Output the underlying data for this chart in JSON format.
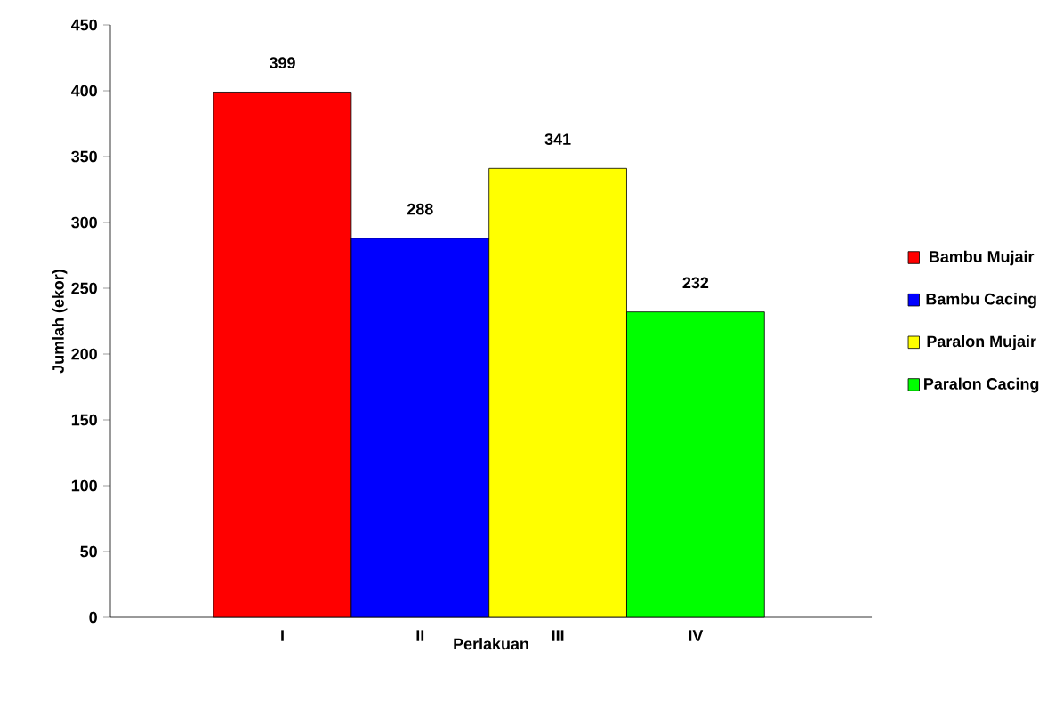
{
  "chart_data": {
    "type": "bar",
    "xlabel": "Perlakuan",
    "ylabel": "Jumlah (ekor)",
    "categories": [
      "I",
      "II",
      "III",
      "IV"
    ],
    "series": [
      {
        "name": "Bambu Mujair",
        "color": "#ff0000",
        "values": [
          399,
          null,
          null,
          null
        ]
      },
      {
        "name": "Bambu Cacing",
        "color": "#0000ff",
        "values": [
          null,
          288,
          null,
          null
        ]
      },
      {
        "name": "Paralon Mujair",
        "color": "#ffff00",
        "values": [
          null,
          null,
          341,
          null
        ]
      },
      {
        "name": "Paralon Cacing",
        "color": "#00ff00",
        "values": [
          null,
          null,
          null,
          232
        ]
      }
    ],
    "ylim": [
      0,
      450
    ],
    "yticks": [
      0,
      50,
      100,
      150,
      200,
      250,
      300,
      350,
      400,
      450
    ],
    "data_labels": true,
    "legend": "right",
    "grid": false
  }
}
